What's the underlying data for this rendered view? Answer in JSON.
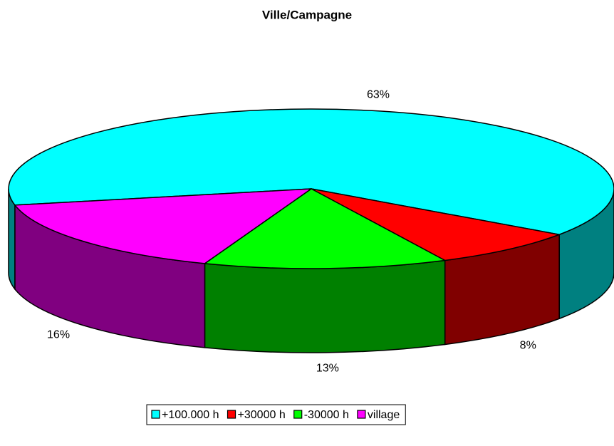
{
  "chart_data": {
    "type": "pie3d",
    "title": "Ville/Campagne",
    "categories": [
      "+100.000 h",
      "+30000 h",
      "-30000 h",
      "village"
    ],
    "values": [
      63,
      8,
      13,
      16
    ],
    "value_labels": [
      "63%",
      "8%",
      "13%",
      "16%"
    ],
    "colors": [
      "#00ffff",
      "#ff0000",
      "#00ff00",
      "#ff00ff"
    ],
    "side_colors": [
      "#008080",
      "#800000",
      "#008000",
      "#800080"
    ],
    "legend": "bottom"
  }
}
